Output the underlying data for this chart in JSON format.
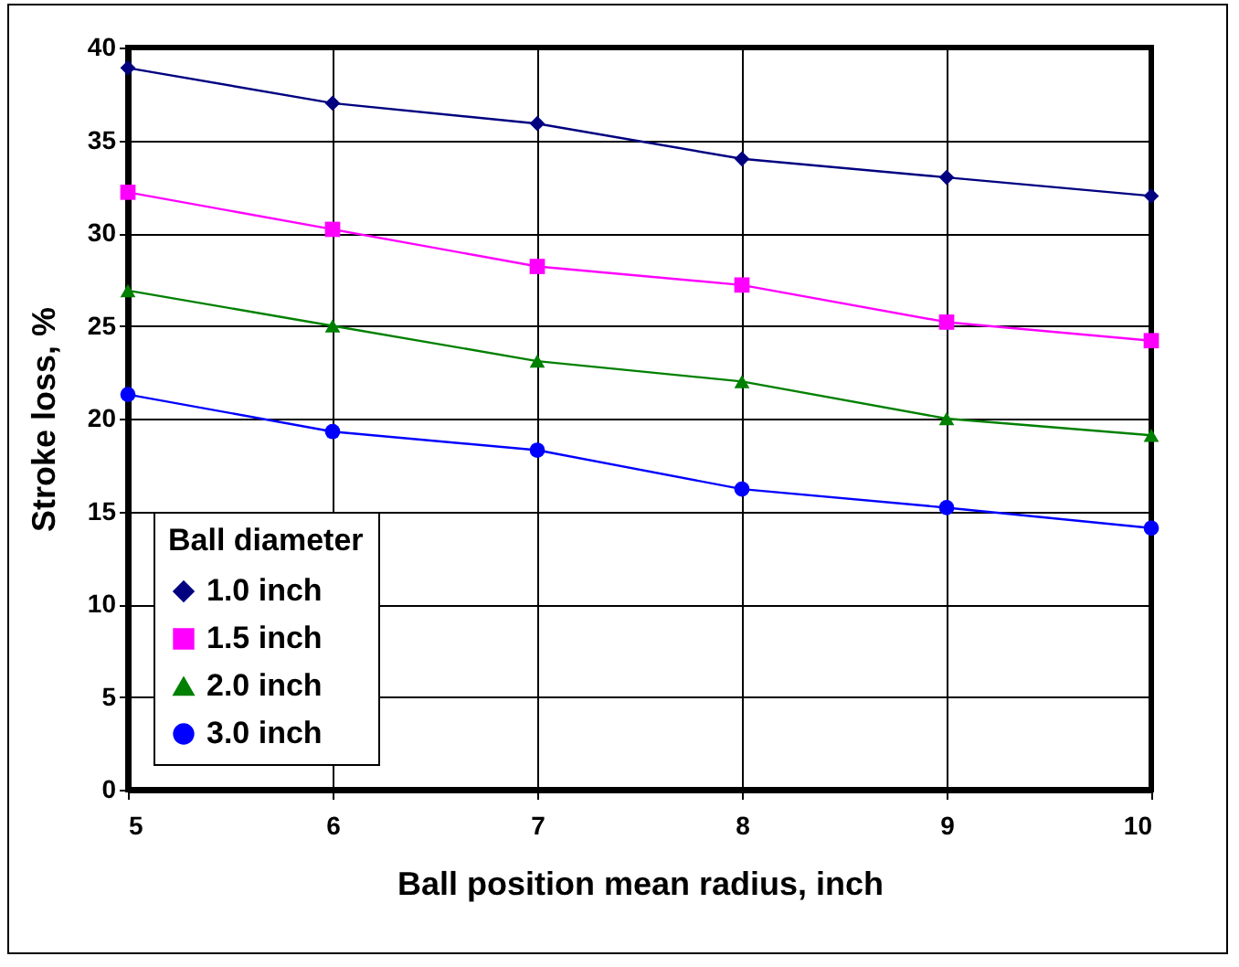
{
  "chart_data": {
    "type": "line",
    "xlabel": "Ball position mean radius, inch",
    "ylabel": "Stroke loss, %",
    "legend_title": "Ball diameter",
    "legend": "bottom left",
    "grid": true,
    "x": [
      5,
      6,
      7,
      8,
      9,
      10
    ],
    "xlim": [
      5,
      10
    ],
    "xticks": [
      5,
      6,
      7,
      8,
      9,
      10
    ],
    "ylim": [
      0,
      40
    ],
    "yticks": [
      0,
      5,
      10,
      15,
      20,
      25,
      30,
      35,
      40
    ],
    "series": [
      {
        "name": "1.0 inch",
        "color": "#000080",
        "marker": "diamond",
        "values": [
          38.9,
          37,
          35.9,
          34,
          33,
          32
        ]
      },
      {
        "name": "1.5 inch",
        "color": "#ff00ff",
        "marker": "square",
        "values": [
          32.2,
          30.2,
          28.2,
          27.2,
          25.2,
          24.2
        ]
      },
      {
        "name": "2.0 inch",
        "color": "#008000",
        "marker": "triangle",
        "values": [
          26.9,
          25,
          23.1,
          22,
          20,
          19.1
        ]
      },
      {
        "name": "3.0 inch",
        "color": "#0000ff",
        "marker": "circle",
        "values": [
          21.3,
          19.3,
          18.3,
          16.2,
          15.2,
          14.1
        ]
      }
    ]
  }
}
